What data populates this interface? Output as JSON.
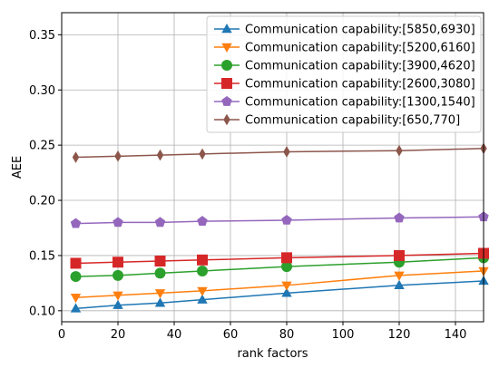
{
  "chart_data": {
    "type": "line",
    "title": "",
    "xlabel": "rank factors",
    "ylabel": "AEE",
    "xlim": [
      0,
      150
    ],
    "ylim": [
      0.09,
      0.37
    ],
    "xticks": [
      0,
      20,
      40,
      60,
      80,
      100,
      120,
      140
    ],
    "xtick_labels": [
      "0",
      "20",
      "40",
      "60",
      "80",
      "100",
      "120",
      "140"
    ],
    "yticks": [
      0.1,
      0.15,
      0.2,
      0.25,
      0.3,
      0.35
    ],
    "ytick_labels": [
      "0.10",
      "0.15",
      "0.20",
      "0.25",
      "0.30",
      "0.35"
    ],
    "grid": true,
    "legend_position": "top-right",
    "x": [
      5,
      20,
      35,
      50,
      80,
      120,
      150
    ],
    "series": [
      {
        "name": "Communication capability:[5850,6930]",
        "color": "#1f77b4",
        "marker": "triangle-up",
        "values": [
          0.102,
          0.105,
          0.107,
          0.11,
          0.116,
          0.123,
          0.127
        ]
      },
      {
        "name": "Communication capability:[5200,6160]",
        "color": "#ff7f0e",
        "marker": "triangle-down",
        "values": [
          0.112,
          0.114,
          0.116,
          0.118,
          0.123,
          0.132,
          0.136
        ]
      },
      {
        "name": "Communication capability:[3900,4620]",
        "color": "#2ca02c",
        "marker": "circle",
        "values": [
          0.131,
          0.132,
          0.134,
          0.136,
          0.14,
          0.144,
          0.148
        ]
      },
      {
        "name": "Communication capability:[2600,3080]",
        "color": "#d62728",
        "marker": "square",
        "values": [
          0.143,
          0.144,
          0.145,
          0.146,
          0.148,
          0.15,
          0.152
        ]
      },
      {
        "name": "Communication capability:[1300,1540]",
        "color": "#9467bd",
        "marker": "pentagon",
        "values": [
          0.179,
          0.18,
          0.18,
          0.181,
          0.182,
          0.184,
          0.185
        ]
      },
      {
        "name": "Communication capability:[650,770]",
        "color": "#8c564b",
        "marker": "thin-diamond",
        "values": [
          0.239,
          0.24,
          0.241,
          0.242,
          0.244,
          0.245,
          0.247
        ]
      }
    ]
  }
}
